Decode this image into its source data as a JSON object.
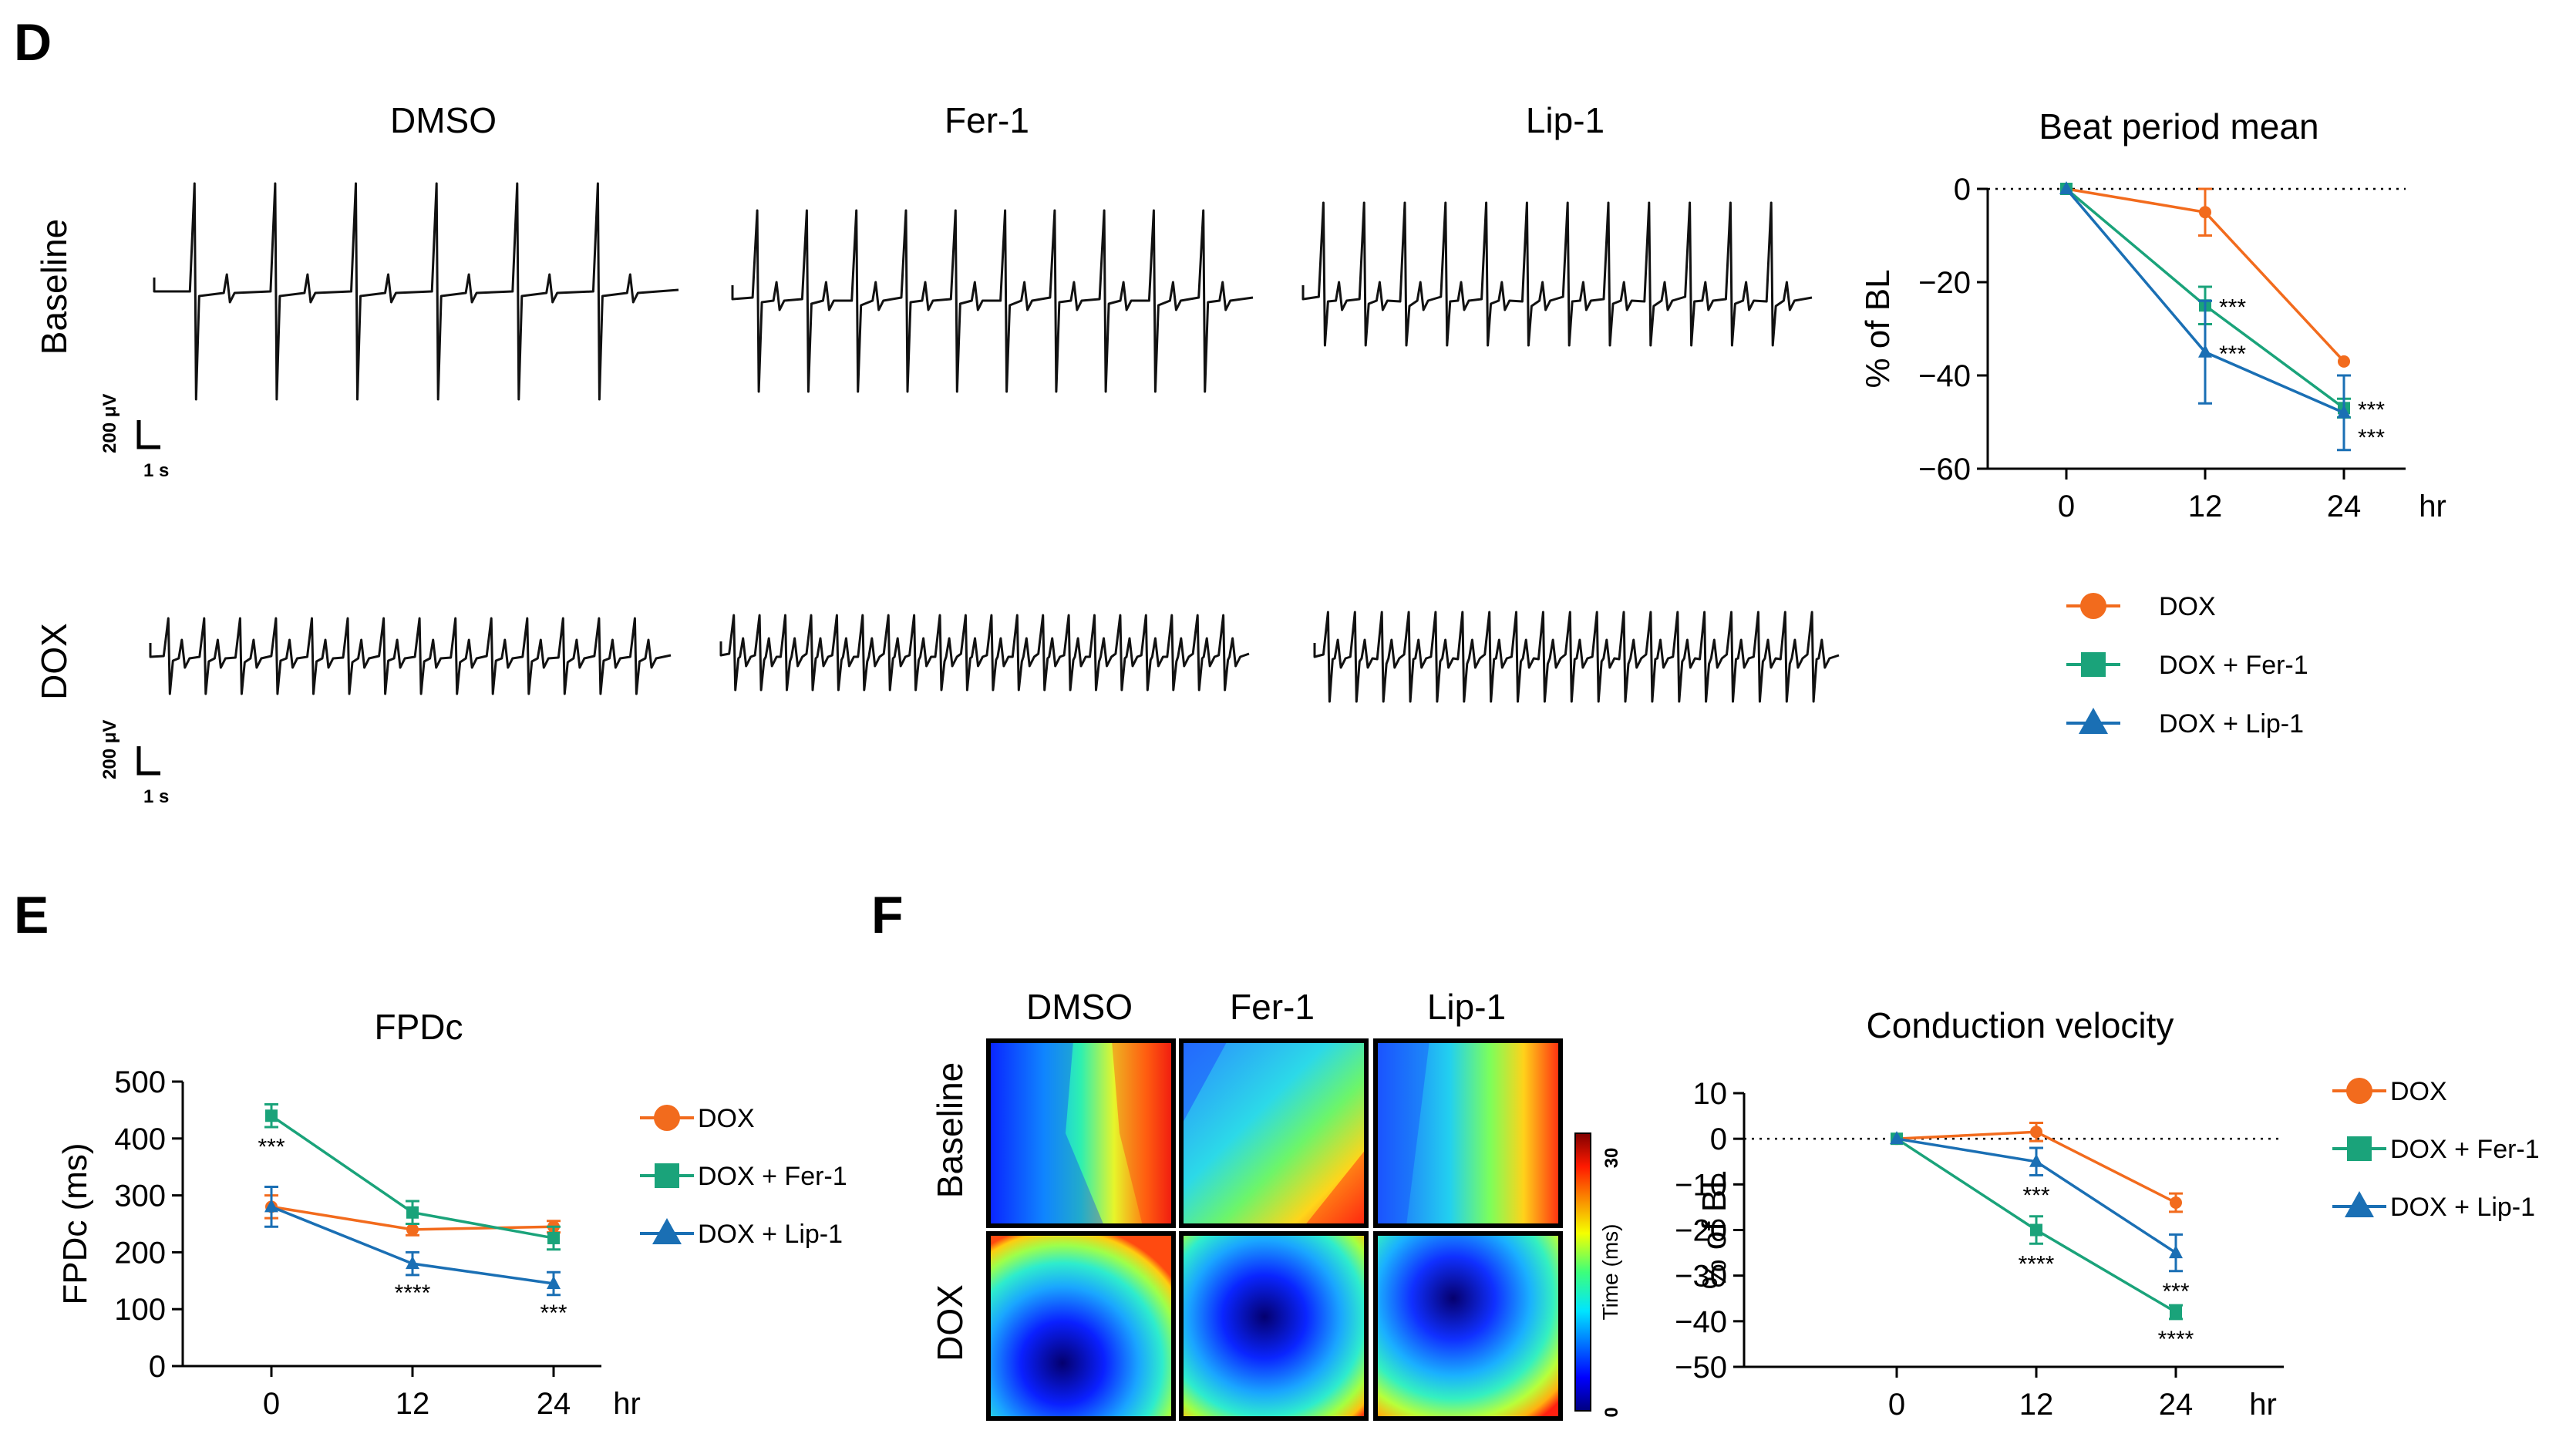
{
  "panels": {
    "D": "D",
    "E": "E",
    "F": "F"
  },
  "colors": {
    "dox": "#f26b1d",
    "fer": "#1aa37a",
    "lip": "#1a6fb4",
    "axis": "#000000"
  },
  "traces": {
    "columns": [
      "DMSO",
      "Fer-1",
      "Lip-1"
    ],
    "rows": [
      "Baseline",
      "DOX"
    ],
    "scalebar": {
      "voltage": "200 μV",
      "time": "1 s"
    }
  },
  "heatmap": {
    "columns": [
      "DMSO",
      "Fer-1",
      "Lip-1"
    ],
    "rows": [
      "Baseline",
      "DOX"
    ],
    "colorbar": {
      "label": "Time (ms)",
      "min": 0,
      "max": 30,
      "min_label": "0",
      "max_label": "30"
    }
  },
  "chart_data": [
    {
      "id": "beat-period",
      "type": "line",
      "title": "Beat period mean",
      "xlabel": "hr",
      "ylabel": "% of BL",
      "x": [
        0,
        12,
        24
      ],
      "xticks": [
        "0",
        "12",
        "24"
      ],
      "ylim": [
        -60,
        0
      ],
      "yticks": [
        0,
        -20,
        -40,
        -60
      ],
      "ytick_labels": [
        "0",
        "−20",
        "−40",
        "−60"
      ],
      "reference_line": 0,
      "series": [
        {
          "name": "DOX",
          "values": [
            0,
            -5,
            -37
          ],
          "errors": [
            0,
            5,
            0
          ],
          "marker": "circle",
          "stars": [
            "",
            "",
            ""
          ]
        },
        {
          "name": "DOX + Fer-1",
          "values": [
            0,
            -25,
            -47
          ],
          "errors": [
            0,
            4,
            2
          ],
          "marker": "square",
          "stars": [
            "",
            "***",
            "***"
          ]
        },
        {
          "name": "DOX + Lip-1",
          "values": [
            0,
            -35,
            -48
          ],
          "errors": [
            0,
            11,
            8
          ],
          "marker": "triangle",
          "stars": [
            "",
            "***",
            "***"
          ]
        }
      ],
      "legend": "below"
    },
    {
      "id": "fpdc",
      "type": "line",
      "title": "FPDc",
      "xlabel": "hr",
      "ylabel": "FPDc (ms)",
      "x": [
        0,
        12,
        24
      ],
      "xticks": [
        "0",
        "12",
        "24"
      ],
      "ylim": [
        0,
        500
      ],
      "yticks": [
        0,
        100,
        200,
        300,
        400,
        500
      ],
      "ytick_labels": [
        "0",
        "100",
        "200",
        "300",
        "400",
        "500"
      ],
      "series": [
        {
          "name": "DOX",
          "values": [
            280,
            240,
            245
          ],
          "errors": [
            20,
            10,
            10
          ],
          "marker": "circle",
          "stars": [
            "",
            "",
            ""
          ]
        },
        {
          "name": "DOX + Fer-1",
          "values": [
            440,
            270,
            225
          ],
          "errors": [
            20,
            20,
            20
          ],
          "marker": "square",
          "stars": [
            "***",
            "",
            ""
          ]
        },
        {
          "name": "DOX + Lip-1",
          "values": [
            280,
            180,
            145
          ],
          "errors": [
            35,
            20,
            20
          ],
          "marker": "triangle",
          "stars": [
            "",
            "****",
            "***"
          ]
        }
      ],
      "legend": "right"
    },
    {
      "id": "conduction-velocity",
      "type": "line",
      "title": "Conduction velocity",
      "xlabel": "hr",
      "ylabel": "% of BL",
      "x": [
        0,
        12,
        24
      ],
      "xticks": [
        "0",
        "12",
        "24"
      ],
      "ylim": [
        -50,
        10
      ],
      "yticks": [
        10,
        0,
        -10,
        -20,
        -30,
        -40,
        -50
      ],
      "ytick_labels": [
        "10",
        "0",
        "−10",
        "−20",
        "−30",
        "−40",
        "−50"
      ],
      "reference_line": 0,
      "series": [
        {
          "name": "DOX",
          "values": [
            0,
            1.5,
            -14
          ],
          "errors": [
            0,
            2,
            2
          ],
          "marker": "circle",
          "stars": [
            "",
            "",
            ""
          ]
        },
        {
          "name": "DOX + Fer-1",
          "values": [
            0,
            -20,
            -38
          ],
          "errors": [
            0,
            3,
            1.5
          ],
          "marker": "square",
          "stars": [
            "",
            "****",
            "****"
          ]
        },
        {
          "name": "DOX + Lip-1",
          "values": [
            0,
            -5,
            -25
          ],
          "errors": [
            0,
            3,
            4
          ],
          "marker": "triangle",
          "stars": [
            "",
            "***",
            "***"
          ]
        }
      ],
      "legend": "top-right"
    }
  ]
}
